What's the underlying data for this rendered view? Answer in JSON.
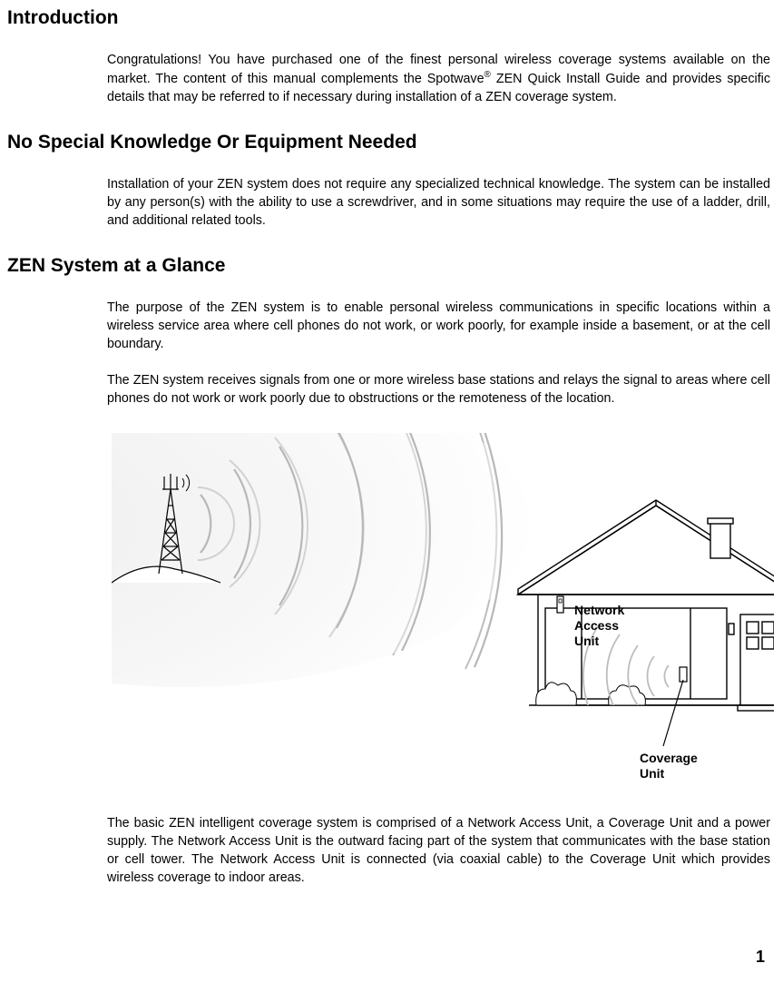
{
  "sections": {
    "intro": {
      "heading": "Introduction",
      "para1": "Congratulations! You have purchased one of the finest personal wireless coverage systems available on the market. The content of this manual complements the Spotwave® ZEN Quick Install Guide and provides specific details that may be referred to if necessary during installation of a ZEN coverage system."
    },
    "noSpecial": {
      "heading": "No Special Knowledge Or Equipment Needed",
      "para1": "Installation of your ZEN system does not require any specialized technical knowledge. The system can be installed by any person(s) with the ability to use a screwdriver, and in some situations may require the use of a ladder, drill, and additional related tools."
    },
    "glance": {
      "heading": "ZEN System at a Glance",
      "para1": "The purpose of the ZEN system is to enable personal wireless communications in specific locations within a wireless service area where cell phones do not work, or work poorly, for example inside a basement, or at the cell boundary.",
      "para2": "The ZEN system receives signals from one or more wireless base stations and relays the signal to areas where cell phones do not work or work poorly due to obstructions or the remoteness of the location.",
      "para3": "The basic ZEN intelligent coverage system is comprised of a Network Access Unit, a Coverage Unit and a power supply. The Network Access Unit is the outward facing part of the system that communicates with the base station or cell tower. The Network Access Unit is connected (via coaxial cable) to the Coverage Unit which provides wireless coverage to indoor areas."
    }
  },
  "figure": {
    "labels": {
      "nau_line1": "Network",
      "nau_line2": "Access",
      "nau_line3": "Unit",
      "cu_line1": "Coverage",
      "cu_line2": "Unit"
    },
    "colors": {
      "stroke": "#000000",
      "wave_stroke": "#cccccc",
      "wave_fill_start": "#e8e8e8",
      "wave_fill_end": "#ffffff",
      "background": "#ffffff"
    }
  },
  "pageNumber": "1"
}
